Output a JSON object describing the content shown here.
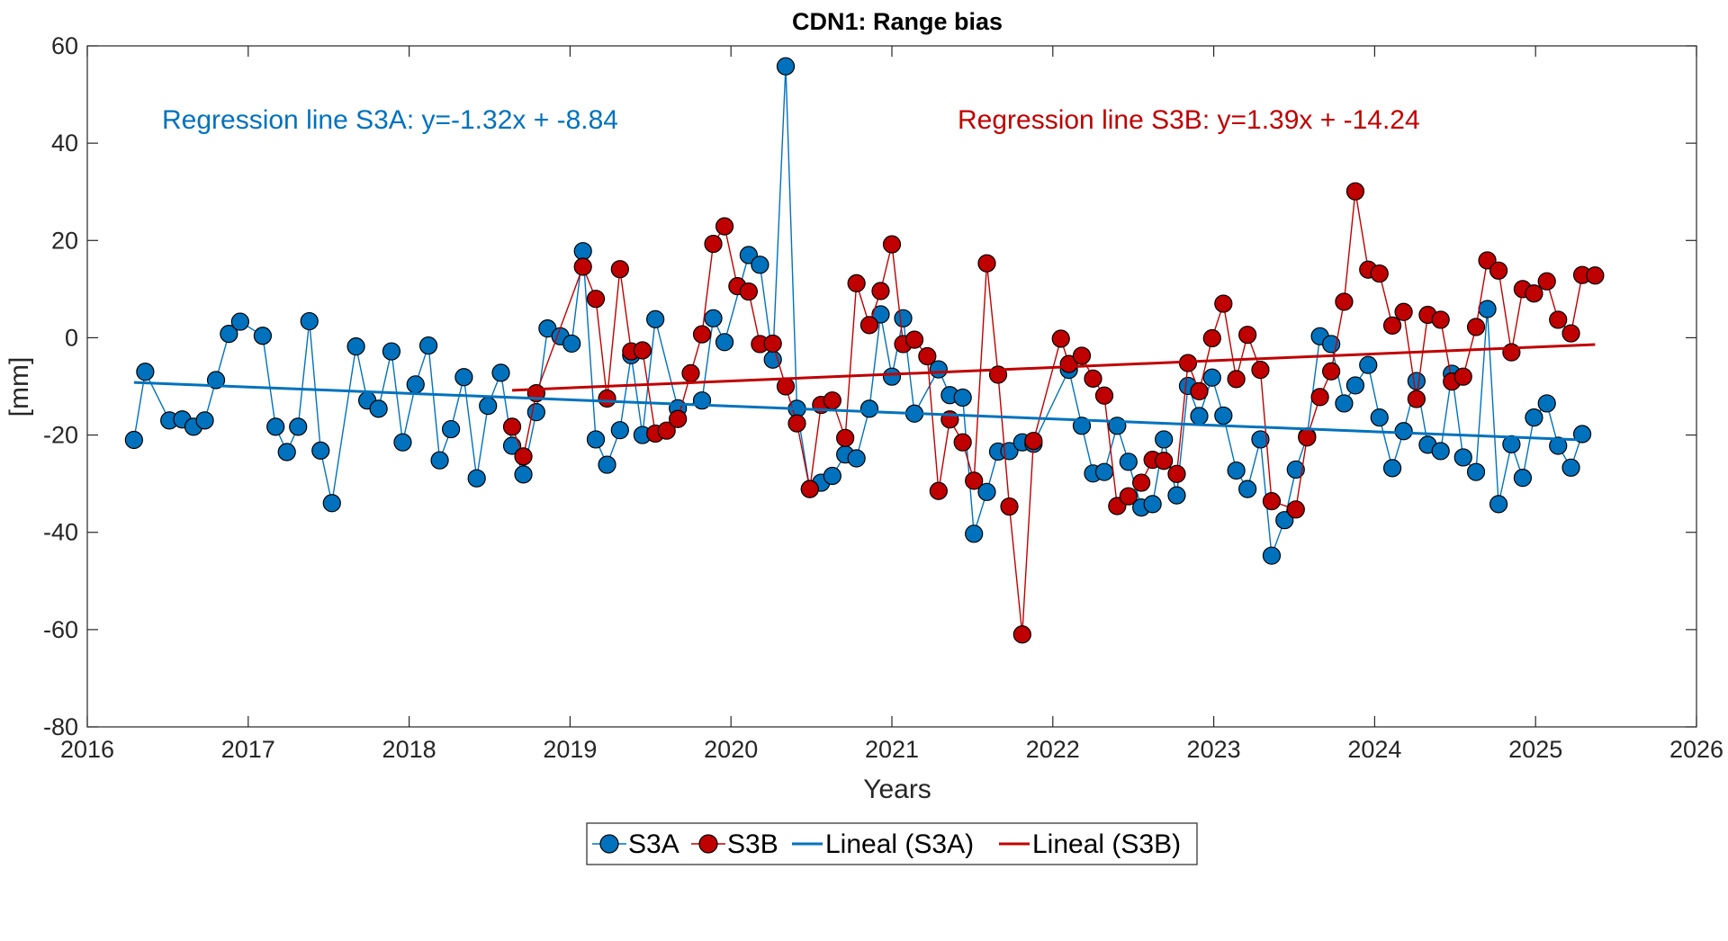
{
  "chart_data": {
    "type": "line",
    "title": "CDN1: Range bias",
    "xlabel": "Years",
    "ylabel": "[mm]",
    "xlim": [
      2016,
      2026
    ],
    "ylim": [
      -80,
      60
    ],
    "xticks": [
      2016,
      2017,
      2018,
      2019,
      2020,
      2021,
      2022,
      2023,
      2024,
      2025,
      2026
    ],
    "yticks": [
      -80,
      -60,
      -40,
      -20,
      0,
      20,
      40,
      60
    ],
    "grid": false,
    "legend_position": "bottom-center outside",
    "series": [
      {
        "name": "S3A",
        "color": "#0072BD",
        "marker": "circle",
        "points": [
          [
            2016.29,
            -21
          ],
          [
            2016.36,
            -7
          ],
          [
            2016.51,
            -17
          ],
          [
            2016.59,
            -16.8
          ],
          [
            2016.66,
            -18.3
          ],
          [
            2016.73,
            -17
          ],
          [
            2016.8,
            -8.7
          ],
          [
            2016.88,
            0.8
          ],
          [
            2016.95,
            3.3
          ],
          [
            2017.09,
            0.4
          ],
          [
            2017.17,
            -18.3
          ],
          [
            2017.24,
            -23.5
          ],
          [
            2017.31,
            -18.3
          ],
          [
            2017.38,
            3.4
          ],
          [
            2017.45,
            -23.2
          ],
          [
            2017.52,
            -34
          ],
          [
            2017.67,
            -1.8
          ],
          [
            2017.74,
            -12.9
          ],
          [
            2017.81,
            -14.6
          ],
          [
            2017.89,
            -2.8
          ],
          [
            2017.96,
            -21.5
          ],
          [
            2018.04,
            -9.6
          ],
          [
            2018.12,
            -1.6
          ],
          [
            2018.19,
            -25.2
          ],
          [
            2018.26,
            -18.8
          ],
          [
            2018.34,
            -8.1
          ],
          [
            2018.42,
            -28.9
          ],
          [
            2018.49,
            -14
          ],
          [
            2018.57,
            -7.2
          ],
          [
            2018.64,
            -22.2
          ],
          [
            2018.71,
            -28.1
          ],
          [
            2018.79,
            -15.3
          ],
          [
            2018.86,
            1.9
          ],
          [
            2018.94,
            0.3
          ],
          [
            2019.01,
            -1.2
          ],
          [
            2019.08,
            17.8
          ],
          [
            2019.16,
            -20.9
          ],
          [
            2019.23,
            -26.1
          ],
          [
            2019.31,
            -19
          ],
          [
            2019.38,
            -3.6
          ],
          [
            2019.45,
            -20
          ],
          [
            2019.53,
            3.8
          ],
          [
            2019.67,
            -14.5
          ],
          [
            2019.82,
            -12.9
          ],
          [
            2019.89,
            4
          ],
          [
            2019.96,
            -0.9
          ],
          [
            2020.11,
            17
          ],
          [
            2020.18,
            15
          ],
          [
            2020.26,
            -4.5
          ],
          [
            2020.34,
            55.8
          ],
          [
            2020.41,
            -14.6
          ],
          [
            2020.49,
            -31.1
          ],
          [
            2020.56,
            -29.8
          ],
          [
            2020.63,
            -28.4
          ],
          [
            2020.71,
            -24
          ],
          [
            2020.78,
            -24.8
          ],
          [
            2020.86,
            -14.6
          ],
          [
            2020.93,
            4.8
          ],
          [
            2021.0,
            -8
          ],
          [
            2021.07,
            4
          ],
          [
            2021.14,
            -15.6
          ],
          [
            2021.29,
            -6.5
          ],
          [
            2021.36,
            -11.8
          ],
          [
            2021.44,
            -12.3
          ],
          [
            2021.51,
            -40.3
          ],
          [
            2021.59,
            -31.7
          ],
          [
            2021.66,
            -23.4
          ],
          [
            2021.73,
            -23.3
          ],
          [
            2021.81,
            -21.5
          ],
          [
            2021.88,
            -21.8
          ],
          [
            2022.1,
            -6.6
          ],
          [
            2022.18,
            -18.1
          ],
          [
            2022.25,
            -27.9
          ],
          [
            2022.32,
            -27.6
          ],
          [
            2022.4,
            -18.1
          ],
          [
            2022.47,
            -25.5
          ],
          [
            2022.55,
            -34.9
          ],
          [
            2022.62,
            -34.2
          ],
          [
            2022.69,
            -20.9
          ],
          [
            2022.77,
            -32.4
          ],
          [
            2022.84,
            -9.9
          ],
          [
            2022.91,
            -16.1
          ],
          [
            2022.99,
            -8.2
          ],
          [
            2023.06,
            -16
          ],
          [
            2023.14,
            -27.3
          ],
          [
            2023.21,
            -31.1
          ],
          [
            2023.29,
            -20.9
          ],
          [
            2023.36,
            -44.8
          ],
          [
            2023.44,
            -37.5
          ],
          [
            2023.51,
            -27.1
          ],
          [
            2023.58,
            -20.3
          ],
          [
            2023.66,
            0.3
          ],
          [
            2023.73,
            -1.3
          ],
          [
            2023.81,
            -13.5
          ],
          [
            2023.88,
            -9.8
          ],
          [
            2023.96,
            -5.6
          ],
          [
            2024.03,
            -16.4
          ],
          [
            2024.11,
            -26.8
          ],
          [
            2024.18,
            -19.2
          ],
          [
            2024.26,
            -8.9
          ],
          [
            2024.33,
            -22
          ],
          [
            2024.41,
            -23.3
          ],
          [
            2024.48,
            -7.4
          ],
          [
            2024.55,
            -24.6
          ],
          [
            2024.63,
            -27.6
          ],
          [
            2024.7,
            5.9
          ],
          [
            2024.77,
            -34.2
          ],
          [
            2024.85,
            -21.9
          ],
          [
            2024.92,
            -28.8
          ],
          [
            2024.99,
            -16.4
          ],
          [
            2025.07,
            -13.5
          ],
          [
            2025.14,
            -22.2
          ],
          [
            2025.22,
            -26.7
          ],
          [
            2025.29,
            -19.8
          ]
        ]
      },
      {
        "name": "S3B",
        "color": "#C00000",
        "marker": "circle",
        "points": [
          [
            2018.64,
            -18.3
          ],
          [
            2018.71,
            -24.4
          ],
          [
            2018.79,
            -11.4
          ],
          [
            2019.08,
            14.6
          ],
          [
            2019.16,
            8
          ],
          [
            2019.23,
            -12.5
          ],
          [
            2019.31,
            14.1
          ],
          [
            2019.38,
            -2.8
          ],
          [
            2019.45,
            -2.6
          ],
          [
            2019.53,
            -19.7
          ],
          [
            2019.6,
            -19.1
          ],
          [
            2019.67,
            -16.7
          ],
          [
            2019.75,
            -7.3
          ],
          [
            2019.82,
            0.7
          ],
          [
            2019.89,
            19.3
          ],
          [
            2019.96,
            22.9
          ],
          [
            2020.04,
            10.6
          ],
          [
            2020.11,
            9.5
          ],
          [
            2020.18,
            -1.3
          ],
          [
            2020.26,
            -1.2
          ],
          [
            2020.34,
            -10
          ],
          [
            2020.41,
            -17.6
          ],
          [
            2020.49,
            -31.1
          ],
          [
            2020.56,
            -13.8
          ],
          [
            2020.63,
            -12.9
          ],
          [
            2020.71,
            -20.6
          ],
          [
            2020.78,
            11.2
          ],
          [
            2020.86,
            2.6
          ],
          [
            2020.93,
            9.6
          ],
          [
            2021.0,
            19.2
          ],
          [
            2021.07,
            -1.3
          ],
          [
            2021.14,
            -0.4
          ],
          [
            2021.22,
            -3.8
          ],
          [
            2021.29,
            -31.5
          ],
          [
            2021.36,
            -16.8
          ],
          [
            2021.44,
            -21.5
          ],
          [
            2021.51,
            -29.4
          ],
          [
            2021.59,
            15.3
          ],
          [
            2021.66,
            -7.6
          ],
          [
            2021.73,
            -34.7
          ],
          [
            2021.81,
            -61
          ],
          [
            2021.88,
            -21.2
          ],
          [
            2022.05,
            -0.2
          ],
          [
            2022.1,
            -5.4
          ],
          [
            2022.18,
            -3.7
          ],
          [
            2022.25,
            -8.4
          ],
          [
            2022.32,
            -11.9
          ],
          [
            2022.4,
            -34.6
          ],
          [
            2022.47,
            -32.6
          ],
          [
            2022.55,
            -29.8
          ],
          [
            2022.62,
            -25.1
          ],
          [
            2022.69,
            -25.3
          ],
          [
            2022.77,
            -28
          ],
          [
            2022.84,
            -5.2
          ],
          [
            2022.91,
            -11
          ],
          [
            2022.99,
            -0.1
          ],
          [
            2023.06,
            7
          ],
          [
            2023.14,
            -8.5
          ],
          [
            2023.21,
            0.6
          ],
          [
            2023.29,
            -6.6
          ],
          [
            2023.36,
            -33.6
          ],
          [
            2023.51,
            -35.3
          ],
          [
            2023.58,
            -20.5
          ],
          [
            2023.66,
            -12.2
          ],
          [
            2023.73,
            -6.9
          ],
          [
            2023.81,
            7.4
          ],
          [
            2023.88,
            30.1
          ],
          [
            2023.96,
            14
          ],
          [
            2024.03,
            13.2
          ],
          [
            2024.11,
            2.5
          ],
          [
            2024.18,
            5.3
          ],
          [
            2024.26,
            -12.6
          ],
          [
            2024.33,
            4.7
          ],
          [
            2024.41,
            3.7
          ],
          [
            2024.48,
            -9
          ],
          [
            2024.55,
            -8
          ],
          [
            2024.63,
            2.2
          ],
          [
            2024.7,
            15.9
          ],
          [
            2024.77,
            13.8
          ],
          [
            2024.85,
            -3
          ],
          [
            2024.92,
            10
          ],
          [
            2024.99,
            9.1
          ],
          [
            2025.07,
            11.6
          ],
          [
            2025.14,
            3.7
          ],
          [
            2025.22,
            0.9
          ],
          [
            2025.29,
            12.9
          ],
          [
            2025.37,
            12.8
          ]
        ]
      },
      {
        "name": "Lineal (S3A)",
        "color": "#0072BD",
        "marker": "none",
        "points": [
          [
            2016.29,
            -9.2
          ],
          [
            2025.29,
            -21
          ]
        ]
      },
      {
        "name": "Lineal (S3B)",
        "color": "#C00000",
        "marker": "none",
        "points": [
          [
            2018.64,
            -10.8
          ],
          [
            2025.37,
            -1.4
          ]
        ]
      }
    ],
    "annotations": [
      {
        "text": "Regression line S3A: y=-1.32x + -8.84",
        "color": "#0072BD",
        "position": "top-left"
      },
      {
        "text": "Regression line S3B: y=1.39x + -14.24",
        "color": "#C00000",
        "position": "top-right"
      }
    ],
    "legend": [
      "S3A",
      "S3B",
      "Lineal (S3A)",
      "Lineal (S3B)"
    ]
  }
}
